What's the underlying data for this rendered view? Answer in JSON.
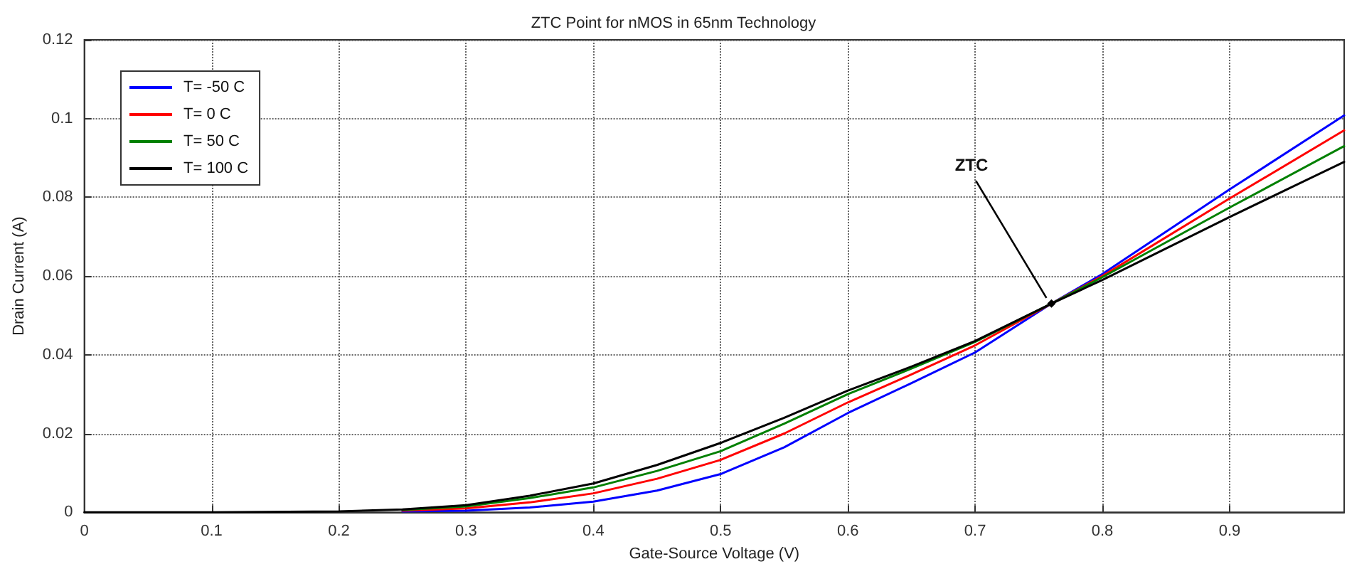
{
  "chart_data": {
    "type": "line",
    "title": "ZTC Point for nMOS in 65nm Technology",
    "xlabel": "Gate-Source Voltage (V)",
    "ylabel": "Drain Current (A)",
    "x": [
      0,
      0.1,
      0.2,
      0.25,
      0.3,
      0.35,
      0.4,
      0.45,
      0.5,
      0.55,
      0.6,
      0.65,
      0.7,
      0.76,
      0.8,
      0.9,
      0.99
    ],
    "series": [
      {
        "name": "T= -50 C",
        "color": "#0000ff",
        "values": [
          null,
          null,
          null,
          0.0002,
          0.0004,
          0.0012,
          0.0027,
          0.0055,
          0.0097,
          0.0165,
          0.0252,
          0.0328,
          0.0406,
          0.053,
          0.0605,
          0.082,
          0.1008
        ]
      },
      {
        "name": "T= 0 C",
        "color": "#ff0000",
        "values": [
          null,
          null,
          null,
          0.0004,
          0.001,
          0.0025,
          0.0048,
          0.0085,
          0.0133,
          0.02,
          0.0279,
          0.035,
          0.0424,
          0.053,
          0.06,
          0.0797,
          0.097
        ]
      },
      {
        "name": "T= 50 C",
        "color": "#008000",
        "values": [
          null,
          null,
          null,
          0.0006,
          0.0015,
          0.0036,
          0.0063,
          0.0105,
          0.0155,
          0.0225,
          0.03,
          0.0365,
          0.0433,
          0.053,
          0.0597,
          0.0774,
          0.093
        ]
      },
      {
        "name": "T= 100 C",
        "color": "#000000",
        "values": [
          0,
          0,
          0.0002,
          0.0007,
          0.0018,
          0.0042,
          0.0073,
          0.012,
          0.0176,
          0.024,
          0.0309,
          0.037,
          0.0435,
          0.053,
          0.059,
          0.075,
          0.089
        ]
      }
    ],
    "xlim": [
      0,
      0.99
    ],
    "xticks": [
      0,
      0.1,
      0.2,
      0.3,
      0.4,
      0.5,
      0.6,
      0.7,
      0.8,
      0.9
    ],
    "ylim": [
      0,
      0.12
    ],
    "yticks": [
      0,
      0.02,
      0.04,
      0.06,
      0.08,
      0.1,
      0.12
    ],
    "annotations": [
      {
        "text": "ZTC",
        "x": 0.76,
        "y": 0.053
      }
    ],
    "grid": true,
    "legend": "top left",
    "marker": "none",
    "line_style": "solid"
  }
}
